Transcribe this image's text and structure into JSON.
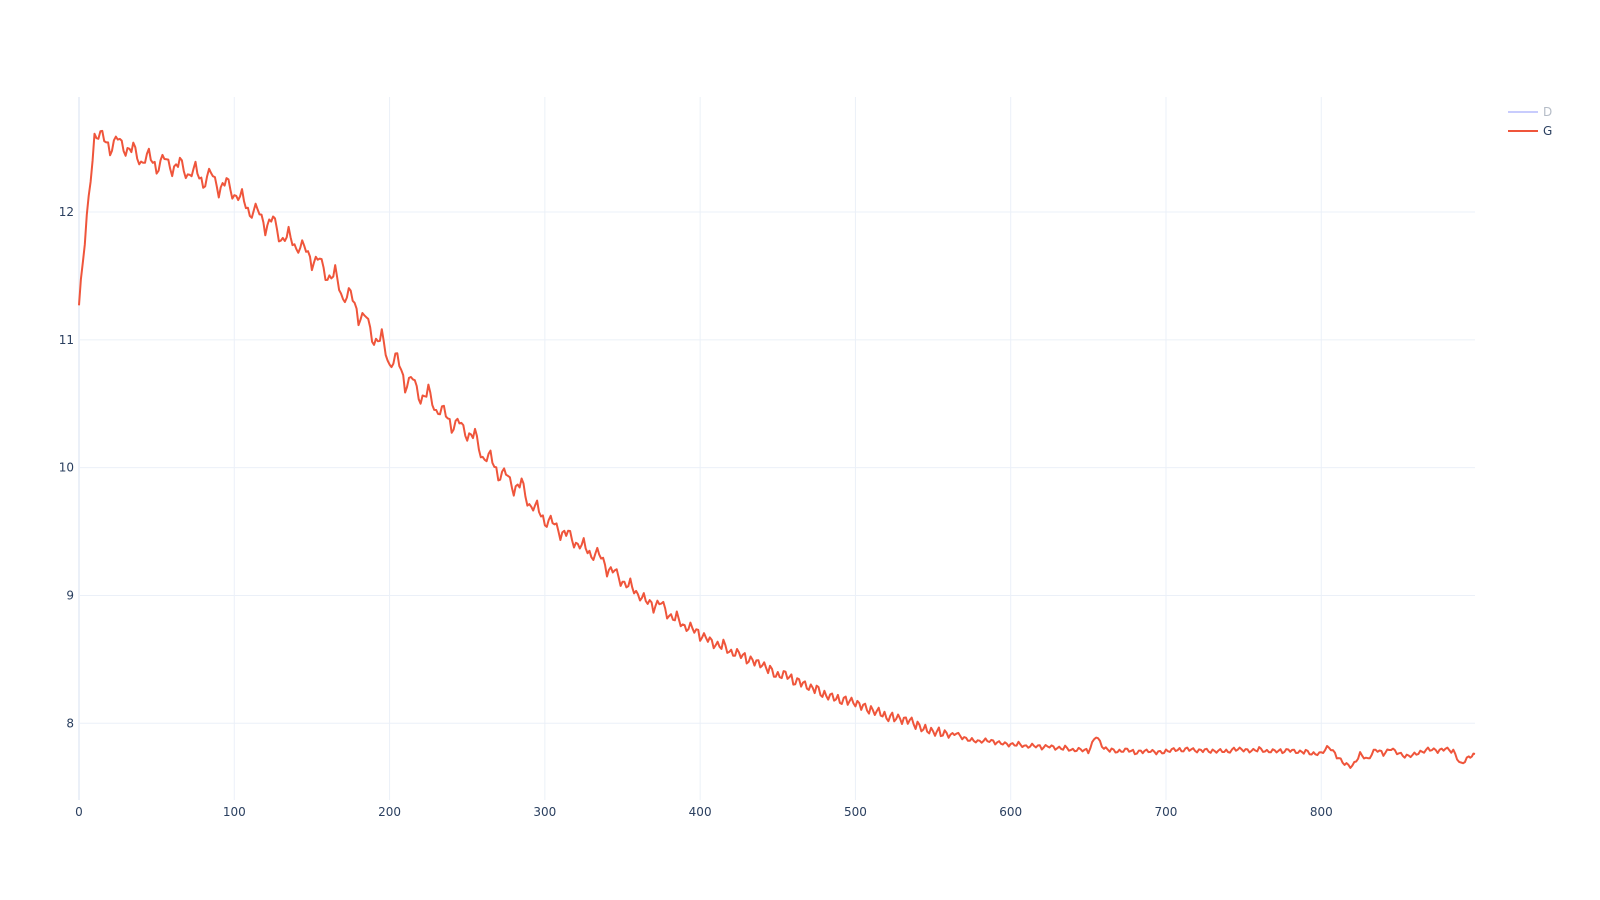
{
  "chart_data": {
    "type": "line",
    "title": "",
    "xlabel": "",
    "ylabel": "",
    "xlim": [
      0,
      899
    ],
    "ylim": [
      7.4,
      12.9
    ],
    "grid": true,
    "legend_position": "top-right",
    "x_ticks": [
      0,
      100,
      200,
      300,
      400,
      500,
      600,
      700,
      800
    ],
    "y_ticks": [
      8,
      9,
      10,
      11,
      12
    ],
    "series": [
      {
        "name": "D",
        "color": "#636efa",
        "opacity": 0.35,
        "visible": false,
        "points": []
      },
      {
        "name": "G",
        "color": "#EF553B",
        "visible": true,
        "sample_step": 5,
        "points": [
          [
            0,
            11.27
          ],
          [
            5,
            11.95
          ],
          [
            10,
            12.58
          ],
          [
            15,
            12.63
          ],
          [
            20,
            12.47
          ],
          [
            25,
            12.6
          ],
          [
            30,
            12.45
          ],
          [
            35,
            12.52
          ],
          [
            40,
            12.36
          ],
          [
            45,
            12.48
          ],
          [
            50,
            12.32
          ],
          [
            55,
            12.45
          ],
          [
            60,
            12.3
          ],
          [
            65,
            12.41
          ],
          [
            70,
            12.26
          ],
          [
            75,
            12.37
          ],
          [
            80,
            12.2
          ],
          [
            85,
            12.34
          ],
          [
            90,
            12.14
          ],
          [
            95,
            12.26
          ],
          [
            100,
            12.1
          ],
          [
            105,
            12.15
          ],
          [
            110,
            11.97
          ],
          [
            115,
            12.05
          ],
          [
            120,
            11.85
          ],
          [
            125,
            11.97
          ],
          [
            130,
            11.75
          ],
          [
            135,
            11.85
          ],
          [
            140,
            11.7
          ],
          [
            145,
            11.76
          ],
          [
            150,
            11.58
          ],
          [
            155,
            11.65
          ],
          [
            160,
            11.45
          ],
          [
            165,
            11.55
          ],
          [
            170,
            11.3
          ],
          [
            175,
            11.4
          ],
          [
            180,
            11.15
          ],
          [
            185,
            11.2
          ],
          [
            190,
            10.95
          ],
          [
            195,
            11.05
          ],
          [
            200,
            10.78
          ],
          [
            205,
            10.9
          ],
          [
            210,
            10.62
          ],
          [
            215,
            10.72
          ],
          [
            220,
            10.5
          ],
          [
            225,
            10.62
          ],
          [
            230,
            10.42
          ],
          [
            235,
            10.48
          ],
          [
            240,
            10.3
          ],
          [
            245,
            10.38
          ],
          [
            250,
            10.22
          ],
          [
            255,
            10.28
          ],
          [
            260,
            10.05
          ],
          [
            265,
            10.12
          ],
          [
            270,
            9.92
          ],
          [
            275,
            9.98
          ],
          [
            280,
            9.8
          ],
          [
            285,
            9.9
          ],
          [
            290,
            9.68
          ],
          [
            295,
            9.72
          ],
          [
            300,
            9.56
          ],
          [
            305,
            9.6
          ],
          [
            310,
            9.46
          ],
          [
            315,
            9.5
          ],
          [
            320,
            9.38
          ],
          [
            325,
            9.42
          ],
          [
            330,
            9.3
          ],
          [
            335,
            9.35
          ],
          [
            340,
            9.18
          ],
          [
            345,
            9.2
          ],
          [
            350,
            9.08
          ],
          [
            355,
            9.1
          ],
          [
            360,
            9.0
          ],
          [
            365,
            8.98
          ],
          [
            370,
            8.9
          ],
          [
            375,
            8.95
          ],
          [
            380,
            8.82
          ],
          [
            385,
            8.84
          ],
          [
            390,
            8.75
          ],
          [
            395,
            8.76
          ],
          [
            400,
            8.68
          ],
          [
            405,
            8.66
          ],
          [
            410,
            8.6
          ],
          [
            415,
            8.62
          ],
          [
            420,
            8.55
          ],
          [
            425,
            8.56
          ],
          [
            430,
            8.5
          ],
          [
            435,
            8.48
          ],
          [
            440,
            8.45
          ],
          [
            445,
            8.42
          ],
          [
            450,
            8.37
          ],
          [
            455,
            8.4
          ],
          [
            460,
            8.33
          ],
          [
            465,
            8.32
          ],
          [
            470,
            8.27
          ],
          [
            475,
            8.27
          ],
          [
            480,
            8.22
          ],
          [
            485,
            8.22
          ],
          [
            490,
            8.18
          ],
          [
            495,
            8.18
          ],
          [
            500,
            8.15
          ],
          [
            505,
            8.13
          ],
          [
            510,
            8.1
          ],
          [
            515,
            8.1
          ],
          [
            520,
            8.05
          ],
          [
            525,
            8.05
          ],
          [
            530,
            8.02
          ],
          [
            535,
            8.02
          ],
          [
            540,
            7.98
          ],
          [
            545,
            7.96
          ],
          [
            550,
            7.94
          ],
          [
            555,
            7.93
          ],
          [
            560,
            7.9
          ],
          [
            565,
            7.92
          ],
          [
            570,
            7.88
          ],
          [
            575,
            7.87
          ],
          [
            580,
            7.86
          ],
          [
            585,
            7.87
          ],
          [
            590,
            7.85
          ],
          [
            595,
            7.84
          ],
          [
            600,
            7.83
          ],
          [
            605,
            7.84
          ],
          [
            610,
            7.82
          ],
          [
            615,
            7.83
          ],
          [
            620,
            7.81
          ],
          [
            625,
            7.82
          ],
          [
            630,
            7.8
          ],
          [
            635,
            7.81
          ],
          [
            640,
            7.79
          ],
          [
            645,
            7.8
          ],
          [
            650,
            7.78
          ],
          [
            655,
            7.9
          ],
          [
            660,
            7.8
          ],
          [
            665,
            7.79
          ],
          [
            670,
            7.78
          ],
          [
            675,
            7.8
          ],
          [
            680,
            7.77
          ],
          [
            685,
            7.78
          ],
          [
            690,
            7.78
          ],
          [
            695,
            7.77
          ],
          [
            700,
            7.78
          ],
          [
            705,
            7.8
          ],
          [
            710,
            7.79
          ],
          [
            715,
            7.8
          ],
          [
            720,
            7.78
          ],
          [
            725,
            7.79
          ],
          [
            730,
            7.78
          ],
          [
            735,
            7.79
          ],
          [
            740,
            7.78
          ],
          [
            745,
            7.8
          ],
          [
            750,
            7.79
          ],
          [
            755,
            7.78
          ],
          [
            760,
            7.8
          ],
          [
            765,
            7.78
          ],
          [
            770,
            7.79
          ],
          [
            775,
            7.78
          ],
          [
            780,
            7.79
          ],
          [
            785,
            7.77
          ],
          [
            790,
            7.78
          ],
          [
            795,
            7.76
          ],
          [
            800,
            7.77
          ],
          [
            805,
            7.82
          ],
          [
            810,
            7.74
          ],
          [
            815,
            7.68
          ],
          [
            820,
            7.66
          ],
          [
            825,
            7.76
          ],
          [
            830,
            7.72
          ],
          [
            835,
            7.8
          ],
          [
            840,
            7.76
          ],
          [
            845,
            7.8
          ],
          [
            850,
            7.76
          ],
          [
            855,
            7.74
          ],
          [
            860,
            7.76
          ],
          [
            865,
            7.78
          ],
          [
            870,
            7.8
          ],
          [
            875,
            7.78
          ],
          [
            880,
            7.8
          ],
          [
            885,
            7.78
          ],
          [
            890,
            7.68
          ],
          [
            895,
            7.74
          ],
          [
            899,
            7.76
          ]
        ]
      }
    ]
  }
}
